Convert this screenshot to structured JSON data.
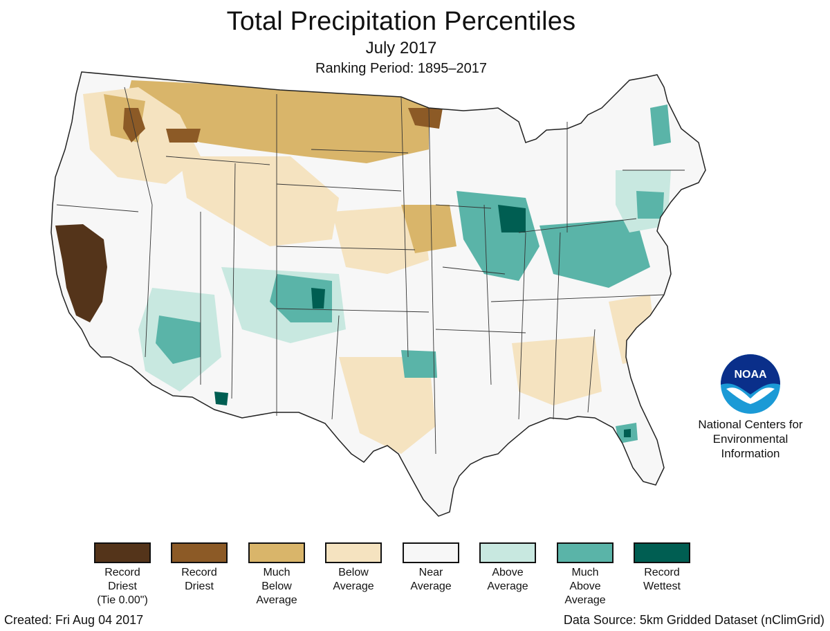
{
  "header": {
    "title": "Total Precipitation Percentiles",
    "subtitle": "July 2017",
    "ranking_period": "Ranking Period: 1895–2017"
  },
  "legend": {
    "items": [
      {
        "label": "Record\nDriest\n(Tie 0.00\")",
        "color": "#54341a"
      },
      {
        "label": "Record\nDriest",
        "color": "#8c5a26"
      },
      {
        "label": "Much\nBelow\nAverage",
        "color": "#d9b56a"
      },
      {
        "label": "Below\nAverage",
        "color": "#f5e3c0"
      },
      {
        "label": "Near\nAverage",
        "color": "#f7f7f7"
      },
      {
        "label": "Above\nAverage",
        "color": "#c8e8e0"
      },
      {
        "label": "Much\nAbove\nAverage",
        "color": "#5ab4a8"
      },
      {
        "label": "Record\nWettest",
        "color": "#005e52"
      }
    ]
  },
  "logo": {
    "wordmark": "NOAA",
    "org_name": "National Centers for\nEnvironmental\nInformation"
  },
  "footer": {
    "created": "Created: Fri Aug 04 2017",
    "source": "Data Source: 5km Gridded Dataset (nClimGrid)"
  }
}
